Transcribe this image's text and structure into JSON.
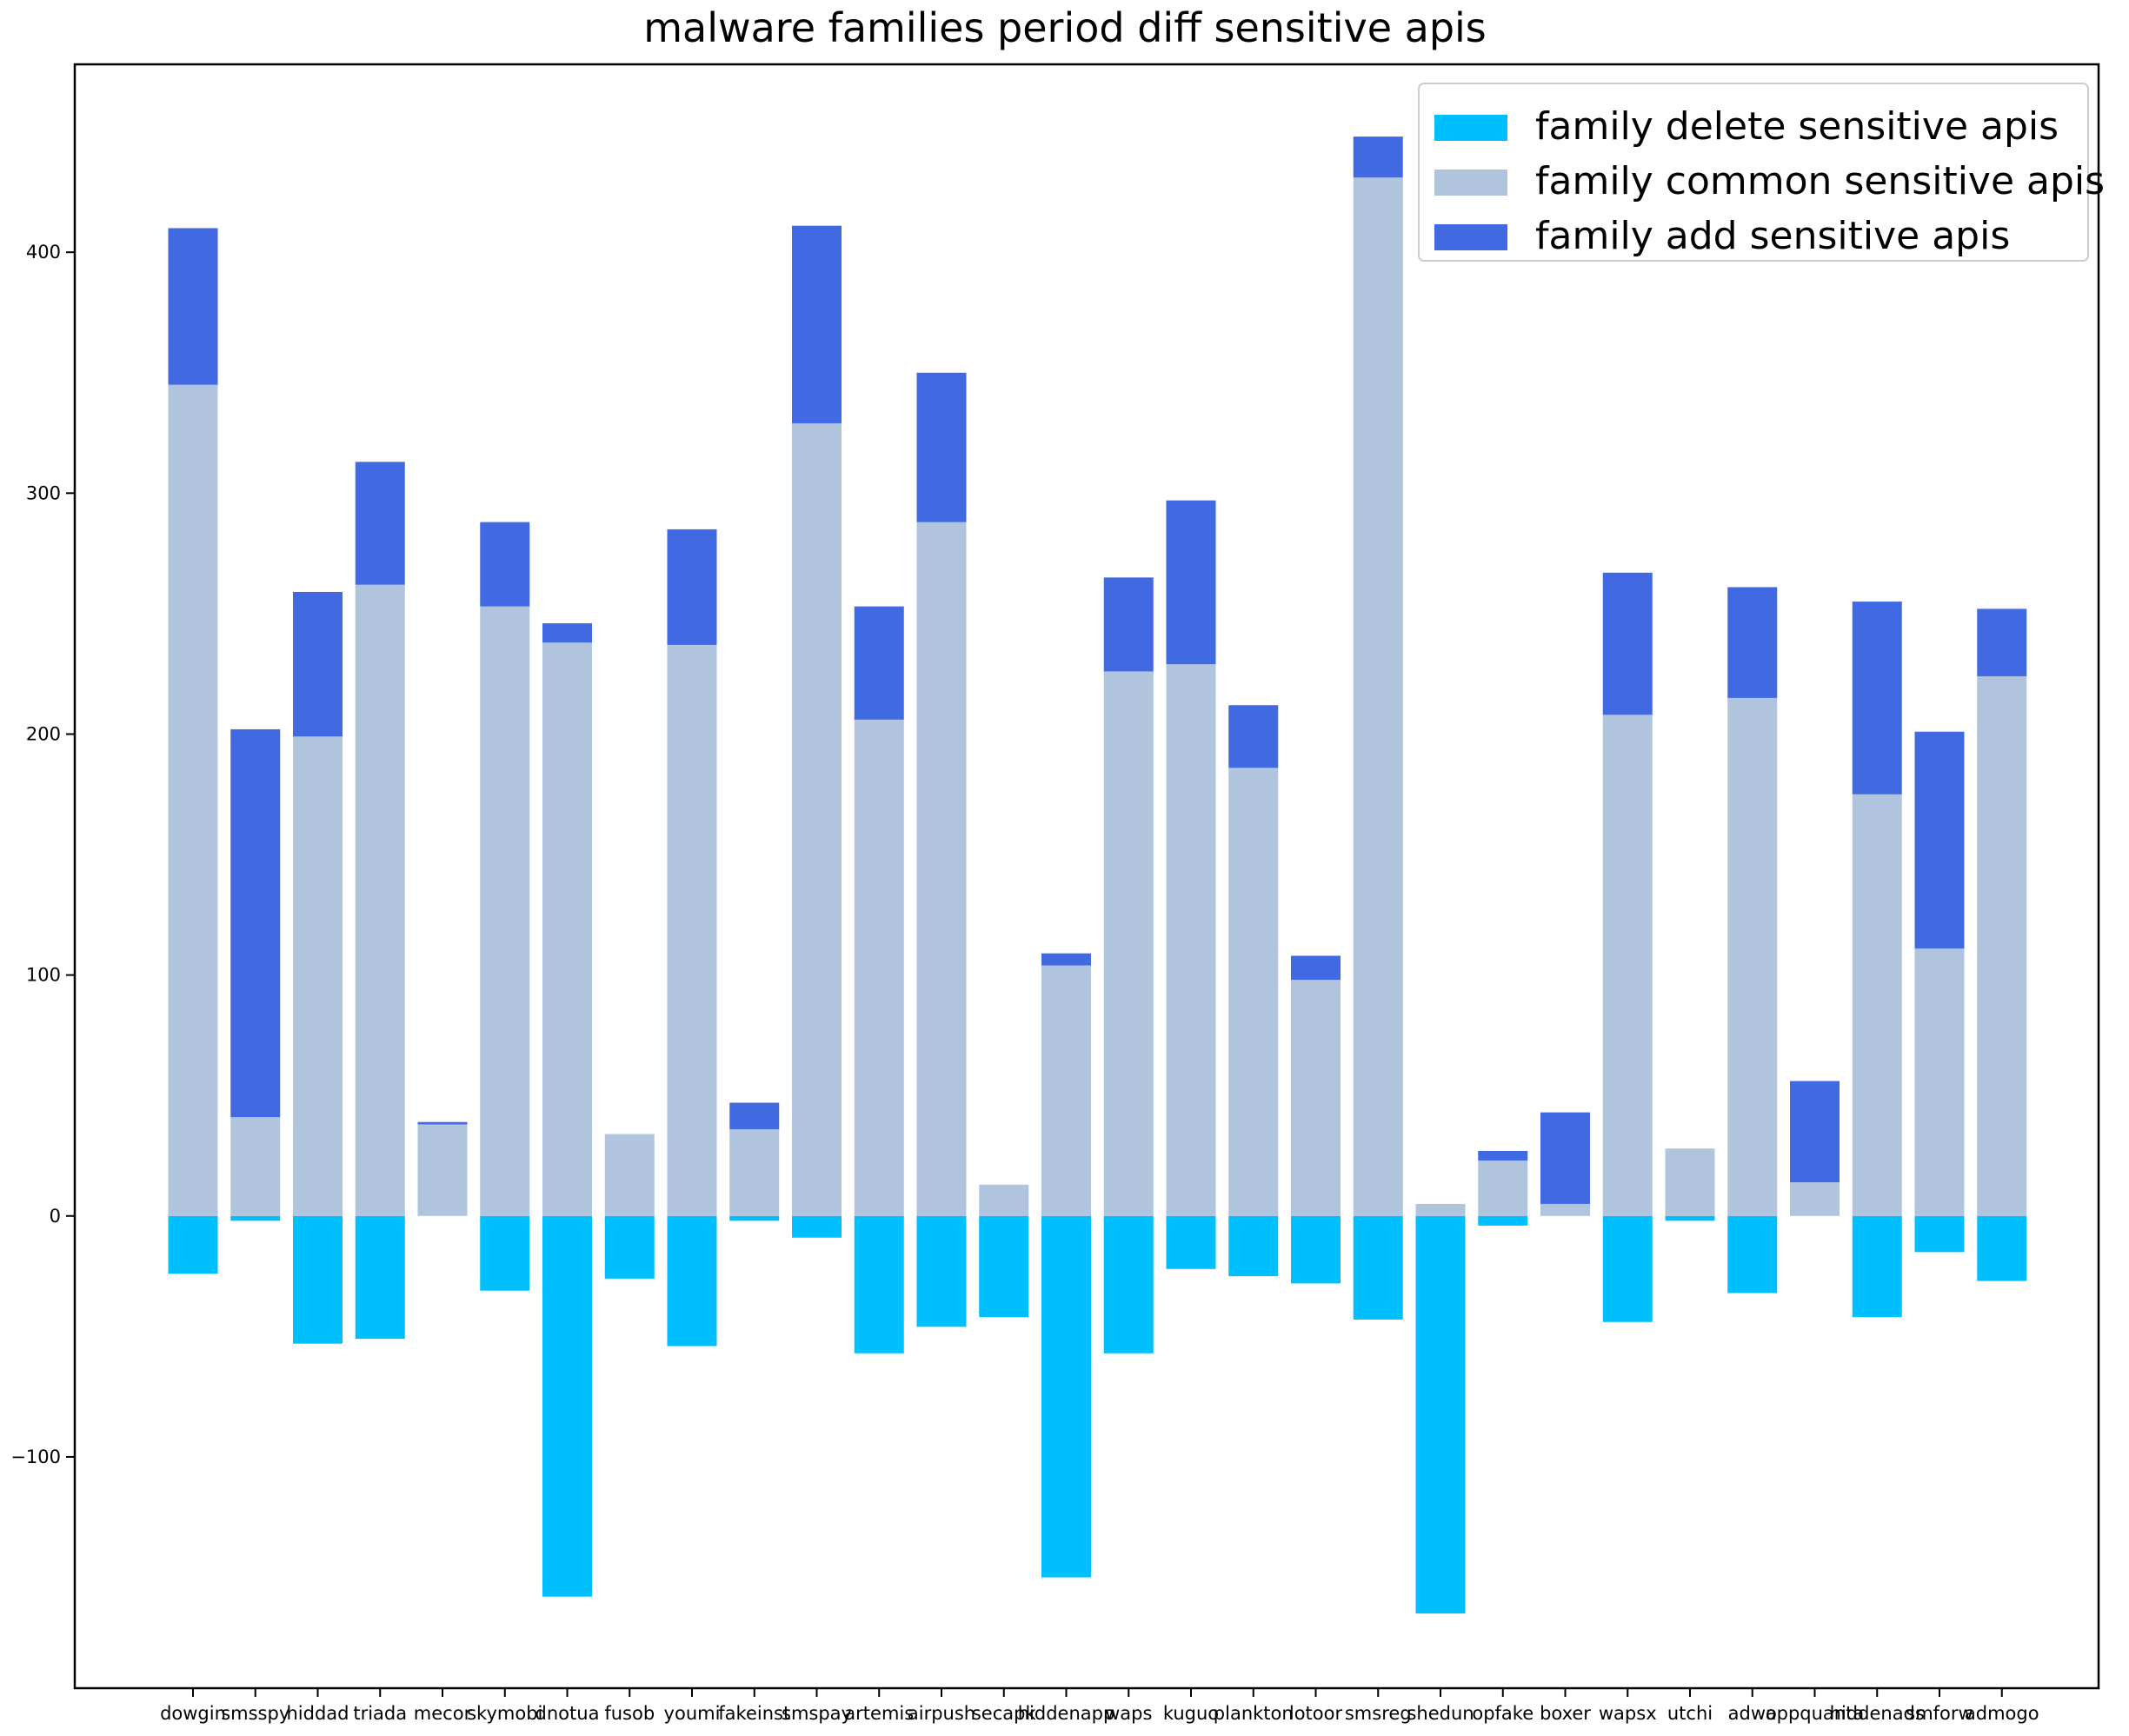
{
  "chart_data": {
    "type": "bar",
    "stacked": true,
    "title": "malware families period diff sensitive apis",
    "xlabel": "",
    "ylabel": "",
    "ylim": [
      -196,
      478
    ],
    "yticks": [
      -100,
      0,
      100,
      200,
      300,
      400
    ],
    "grid": false,
    "legend_position": "top-right",
    "categories": [
      "dowgin",
      "smsspy",
      "hiddad",
      "triada",
      "mecor",
      "skymobi",
      "dnotua",
      "fusob",
      "youmi",
      "fakeinst",
      "smspay",
      "artemis",
      "airpush",
      "secapk",
      "hiddenapp",
      "waps",
      "kuguo",
      "plankton",
      "lotoor",
      "smsreg",
      "shedun",
      "opfake",
      "boxer",
      "wapsx",
      "utchi",
      "adwo",
      "appquanta",
      "hiddenads",
      "smforw",
      "admogo"
    ],
    "series": [
      {
        "name": "family delete sensitive apis",
        "color": "#00BFFF",
        "values": [
          -24,
          -2,
          -53,
          -51,
          0,
          -31,
          -158,
          -26,
          -54,
          -2,
          -9,
          -57,
          -46,
          -42,
          -150,
          -57,
          -22,
          -25,
          -28,
          -43,
          -165,
          -4,
          0,
          -44,
          -2,
          -32,
          0,
          -42,
          -15,
          -27
        ]
      },
      {
        "name": "family common sensitive apis",
        "color": "#B0C4DE",
        "values": [
          345,
          41,
          199,
          262,
          38,
          253,
          238,
          34,
          237,
          36,
          329,
          206,
          288,
          13,
          104,
          226,
          229,
          186,
          98,
          431,
          5,
          23,
          5,
          208,
          28,
          215,
          14,
          175,
          111,
          224
        ]
      },
      {
        "name": "family add sensitive apis",
        "color": "#4169E1",
        "values": [
          65,
          161,
          60,
          51,
          1,
          35,
          8,
          0,
          48,
          11,
          82,
          47,
          62,
          0,
          5,
          39,
          68,
          26,
          10,
          17,
          0,
          4,
          38,
          59,
          0,
          46,
          42,
          80,
          90,
          28
        ]
      }
    ]
  }
}
